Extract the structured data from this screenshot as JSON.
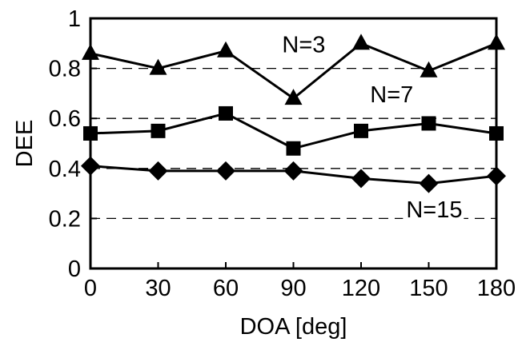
{
  "chart_data": {
    "type": "line",
    "xlabel": "DOA [deg]",
    "ylabel": "DEE",
    "xlim": [
      0,
      180
    ],
    "ylim": [
      0,
      1
    ],
    "x": [
      0,
      30,
      60,
      90,
      120,
      150,
      180
    ],
    "x_ticks": [
      "0",
      "30",
      "60",
      "90",
      "120",
      "150",
      "180"
    ],
    "y_ticks": [
      {
        "value": 0,
        "label": "0"
      },
      {
        "value": 0.2,
        "label": "0.2"
      },
      {
        "value": 0.4,
        "label": "0.4"
      },
      {
        "value": 0.6,
        "label": "0.6"
      },
      {
        "value": 0.8,
        "label": "0.8"
      },
      {
        "value": 1,
        "label": "1"
      }
    ],
    "grid": {
      "y": true,
      "style": "dashed",
      "values": [
        0.2,
        0.4,
        0.6,
        0.8
      ]
    },
    "line_color": "#000000",
    "series": [
      {
        "marker": "triangle",
        "values": [
          0.86,
          0.8,
          0.87,
          0.68,
          0.9,
          0.79,
          0.9
        ]
      },
      {
        "marker": "square",
        "values": [
          0.54,
          0.55,
          0.62,
          0.48,
          0.55,
          0.58,
          0.54
        ]
      },
      {
        "marker": "diamond",
        "values": [
          0.41,
          0.39,
          0.39,
          0.39,
          0.36,
          0.34,
          0.37
        ]
      }
    ],
    "annotations": [
      {
        "text": "N=3",
        "x": 85,
        "y": 0.865
      },
      {
        "text": "N=7",
        "x": 124,
        "y": 0.665
      },
      {
        "text": "N=15",
        "x": 140,
        "y": 0.205
      }
    ]
  }
}
